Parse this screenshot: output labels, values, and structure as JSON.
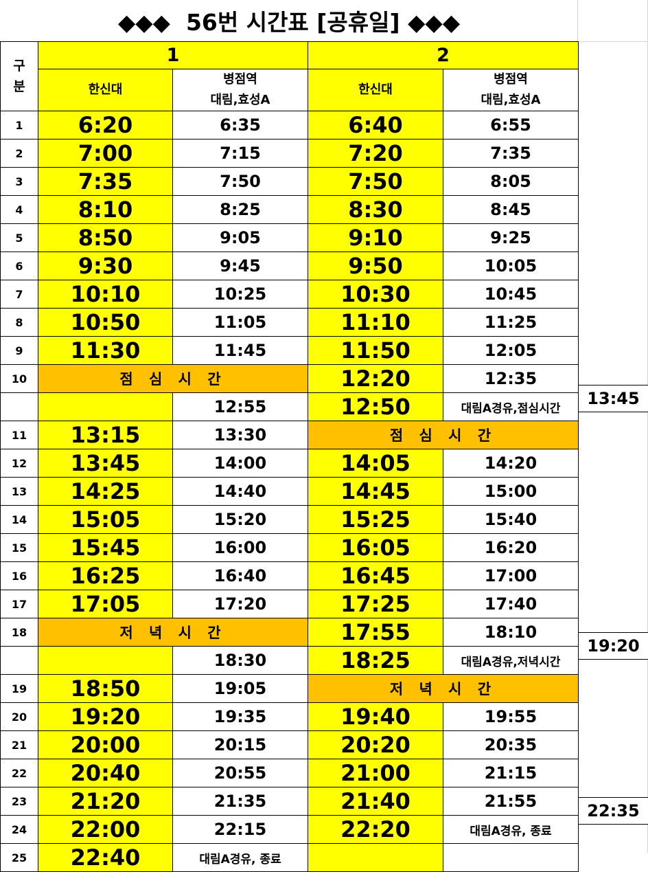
{
  "title": "◆◆◆  56번 시간표 [공휴일] ◆◆◆",
  "header": {
    "gubun": "구\n분",
    "route1": "1",
    "route2": "2",
    "col_hansin": "한신대",
    "col_byeongjeom_l1": "병점역",
    "col_byeongjeom_l2": "대림,효성A"
  },
  "lunch_label": "점 심 시 간",
  "dinner_label": "저 녁 시 간",
  "rows": {
    "r1": {
      "n": "1",
      "a": "6:20",
      "b": "6:35",
      "c": "6:40",
      "d": "6:55"
    },
    "r2": {
      "n": "2",
      "a": "7:00",
      "b": "7:15",
      "c": "7:20",
      "d": "7:35"
    },
    "r3": {
      "n": "3",
      "a": "7:35",
      "b": "7:50",
      "c": "7:50",
      "d": "8:05"
    },
    "r4": {
      "n": "4",
      "a": "8:10",
      "b": "8:25",
      "c": "8:30",
      "d": "8:45"
    },
    "r5": {
      "n": "5",
      "a": "8:50",
      "b": "9:05",
      "c": "9:10",
      "d": "9:25"
    },
    "r6": {
      "n": "6",
      "a": "9:30",
      "b": "9:45",
      "c": "9:50",
      "d": "10:05"
    },
    "r7": {
      "n": "7",
      "a": "10:10",
      "b": "10:25",
      "c": "10:30",
      "d": "10:45"
    },
    "r8": {
      "n": "8",
      "a": "10:50",
      "b": "11:05",
      "c": "11:10",
      "d": "11:25"
    },
    "r9": {
      "n": "9",
      "a": "11:30",
      "b": "11:45",
      "c": "11:50",
      "d": "12:05"
    },
    "r10": {
      "n": "10",
      "c": "12:20",
      "d": "12:35"
    },
    "r10b": {
      "b": "12:55",
      "c": "12:50",
      "d": "대림A경유,점심시간",
      "e": "13:45"
    },
    "r11": {
      "n": "11",
      "a": "13:15",
      "b": "13:30"
    },
    "r12": {
      "n": "12",
      "a": "13:45",
      "b": "14:00",
      "c": "14:05",
      "d": "14:20"
    },
    "r13": {
      "n": "13",
      "a": "14:25",
      "b": "14:40",
      "c": "14:45",
      "d": "15:00"
    },
    "r14": {
      "n": "14",
      "a": "15:05",
      "b": "15:20",
      "c": "15:25",
      "d": "15:40"
    },
    "r15": {
      "n": "15",
      "a": "15:45",
      "b": "16:00",
      "c": "16:05",
      "d": "16:20"
    },
    "r16": {
      "n": "16",
      "a": "16:25",
      "b": "16:40",
      "c": "16:45",
      "d": "17:00"
    },
    "r17": {
      "n": "17",
      "a": "17:05",
      "b": "17:20",
      "c": "17:25",
      "d": "17:40"
    },
    "r18": {
      "n": "18",
      "c": "17:55",
      "d": "18:10"
    },
    "r18b": {
      "b": "18:30",
      "c": "18:25",
      "d": "대림A경유,저녁시간",
      "e": "19:20"
    },
    "r19": {
      "n": "19",
      "a": "18:50",
      "b": "19:05"
    },
    "r20": {
      "n": "20",
      "a": "19:20",
      "b": "19:35",
      "c": "19:40",
      "d": "19:55"
    },
    "r21": {
      "n": "21",
      "a": "20:00",
      "b": "20:15",
      "c": "20:20",
      "d": "20:35"
    },
    "r22": {
      "n": "22",
      "a": "20:40",
      "b": "20:55",
      "c": "21:00",
      "d": "21:15"
    },
    "r23": {
      "n": "23",
      "a": "21:20",
      "b": "21:35",
      "c": "21:40",
      "d": "21:55"
    },
    "r24": {
      "n": "24",
      "a": "22:00",
      "b": "22:15",
      "c": "22:20",
      "d": "대림A경유, 종료",
      "e": "22:35"
    },
    "r25": {
      "n": "25",
      "a": "22:40",
      "b": "대림A경유, 종료"
    }
  },
  "colors": {
    "yellow": "#ffff00",
    "orange": "#ffc000"
  }
}
